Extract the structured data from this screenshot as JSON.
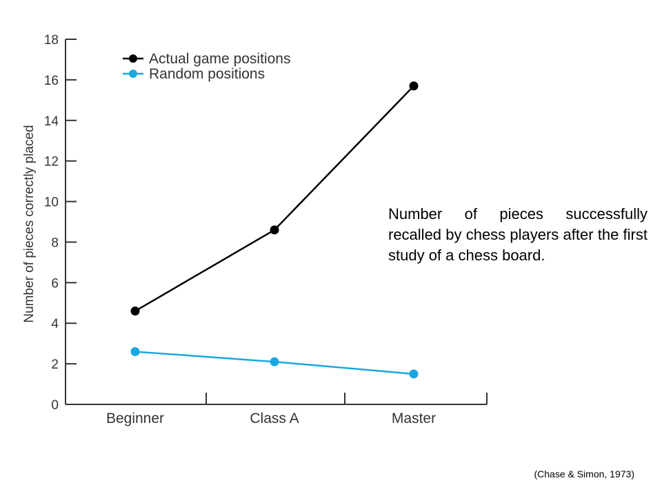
{
  "chart_data": {
    "type": "line",
    "categories": [
      "Beginner",
      "Class A",
      "Master"
    ],
    "series": [
      {
        "name": "Actual game positions",
        "values": [
          4.6,
          8.6,
          15.7
        ],
        "color": "#000000"
      },
      {
        "name": "Random positions",
        "values": [
          2.6,
          2.1,
          1.5
        ],
        "color": "#1aa7e0"
      }
    ],
    "ylabel": "Number of pieces correctly placed",
    "xlabel": "",
    "ylim": [
      0,
      18
    ],
    "yticks": [
      0,
      2,
      4,
      6,
      8,
      10,
      12,
      14,
      16,
      18
    ],
    "grid": false,
    "legend_position": "top-left"
  },
  "caption": "Number of pieces successfully recalled by chess players after the first study of a chess board.",
  "citation": "(Chase & Simon, 1973)"
}
